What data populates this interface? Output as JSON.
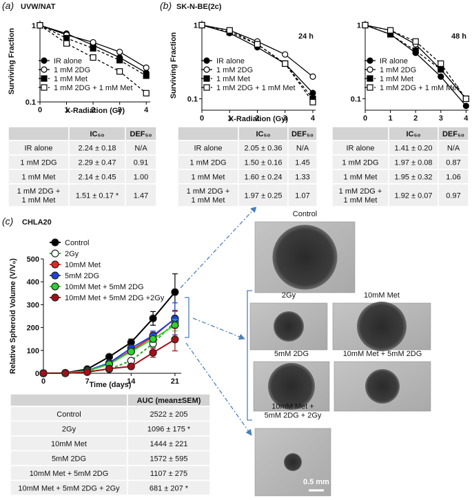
{
  "chart_data": [
    {
      "type": "line",
      "panel_label": "(a)",
      "title": "UVW/NAT",
      "xlabel": "X-Radiation (Gy)",
      "ylabel": "Surviving Fraction",
      "log_y": true,
      "xlim": [
        0,
        4.15
      ],
      "ylim": [
        0.1,
        1.15
      ],
      "xticks": [
        0,
        1,
        2,
        3,
        4
      ],
      "yticks": [
        0.1,
        1
      ],
      "legend": "lower left",
      "x": [
        0,
        1,
        2,
        3,
        4
      ],
      "series": [
        {
          "name": "IR alone",
          "color": "#000000",
          "marker": "circle",
          "marker_fill": true,
          "dash": false,
          "values": [
            1,
            0.78,
            0.55,
            0.38,
            0.24
          ]
        },
        {
          "name": "1 mM 2DG",
          "color": "#000000",
          "marker": "circle",
          "marker_fill": false,
          "dash": false,
          "values": [
            1,
            0.75,
            0.6,
            0.45,
            0.28
          ]
        },
        {
          "name": "1 mM Met",
          "color": "#000000",
          "marker": "square",
          "marker_fill": true,
          "dash": true,
          "values": [
            1,
            0.68,
            0.5,
            0.35,
            0.22
          ]
        },
        {
          "name": "1 mM 2DG + 1 mM Met",
          "color": "#000000",
          "marker": "square",
          "marker_fill": false,
          "dash": true,
          "values": [
            1,
            0.58,
            0.38,
            0.25,
            0.13
          ]
        }
      ]
    },
    {
      "type": "line",
      "panel_label": "(b)",
      "title": "SK-N-BE(2c)",
      "subtitle": "24 h",
      "xlabel": "X-Radiation (Gy)",
      "ylabel": "Surviving Fraction",
      "log_y": true,
      "xlim": [
        0,
        4.1
      ],
      "ylim": [
        0.07,
        1.15
      ],
      "xticks": [
        0,
        1,
        2,
        3,
        4
      ],
      "yticks": [
        0.1,
        1
      ],
      "legend": "lower left",
      "x": [
        0,
        1,
        2,
        3,
        4
      ],
      "series": [
        {
          "name": "IR alone",
          "color": "#000000",
          "marker": "circle",
          "marker_fill": true,
          "dash": false,
          "values": [
            1,
            0.78,
            0.5,
            0.3,
            0.12
          ]
        },
        {
          "name": "1 mM 2DG",
          "color": "#000000",
          "marker": "circle",
          "marker_fill": false,
          "dash": false,
          "values": [
            1,
            0.85,
            0.6,
            0.4,
            0.2
          ]
        },
        {
          "name": "1 mM Met",
          "color": "#000000",
          "marker": "square",
          "marker_fill": true,
          "dash": true,
          "values": [
            1,
            0.8,
            0.55,
            0.3,
            0.1
          ]
        },
        {
          "name": "1 mM 2DG + 1 mM Met",
          "color": "#000000",
          "marker": "square",
          "marker_fill": false,
          "dash": true,
          "values": [
            1,
            0.85,
            0.55,
            0.3,
            0.09
          ]
        }
      ]
    },
    {
      "type": "line",
      "subtitle": "48 h",
      "log_y": true,
      "xlim": [
        0,
        4.1
      ],
      "ylim": [
        0.07,
        1.15
      ],
      "xticks": [
        0,
        1,
        2,
        3,
        4
      ],
      "yticks": [
        0.1,
        1
      ],
      "legend": "lower left",
      "x": [
        0,
        1,
        2,
        3,
        4
      ],
      "series": [
        {
          "name": "IR alone",
          "color": "#000000",
          "marker": "circle",
          "marker_fill": true,
          "dash": false,
          "values": [
            1,
            0.75,
            0.42,
            0.2,
            0.08
          ]
        },
        {
          "name": "1 mM 2DG",
          "color": "#000000",
          "marker": "circle",
          "marker_fill": false,
          "dash": false,
          "values": [
            1,
            0.85,
            0.55,
            0.25,
            0.1
          ]
        },
        {
          "name": "1 mM Met",
          "color": "#000000",
          "marker": "square",
          "marker_fill": true,
          "dash": true,
          "values": [
            1,
            0.75,
            0.45,
            0.25,
            0.1
          ]
        },
        {
          "name": "1 mM 2DG + 1 mM Met",
          "color": "#000000",
          "marker": "square",
          "marker_fill": false,
          "dash": true,
          "values": [
            1,
            0.85,
            0.6,
            0.3,
            0.1
          ]
        }
      ]
    },
    {
      "type": "line",
      "panel_label": "(c)",
      "title": "CHLA20",
      "xlabel": "Time (days)",
      "ylabel": "Relative Spheroid Volume (V/V₀)",
      "log_y": false,
      "xlim": [
        0,
        22
      ],
      "ylim": [
        0,
        500
      ],
      "xticks": [
        0,
        7,
        14,
        21
      ],
      "yticks": [
        0,
        100,
        200,
        300,
        400,
        500
      ],
      "legend": "upper left",
      "x": [
        0,
        3.5,
        7,
        10.5,
        14,
        17.5,
        21
      ],
      "series": [
        {
          "name": "Control",
          "color": "#000000",
          "marker": "circle",
          "marker_fill": true,
          "dash": false,
          "values": [
            0,
            2,
            18,
            72,
            135,
            240,
            355
          ],
          "errors": [
            0,
            1,
            4,
            8,
            15,
            30,
            80
          ]
        },
        {
          "name": "2Gy",
          "color": "#2ca02c",
          "marker": "circle",
          "marker_fill": false,
          "dash": true,
          "values": [
            0,
            1,
            8,
            18,
            55,
            130,
            225
          ],
          "errors": [
            0,
            1,
            2,
            4,
            8,
            15,
            20
          ]
        },
        {
          "name": "10mM Met",
          "color": "#e8251f",
          "marker": "circle",
          "marker_fill": true,
          "dash": false,
          "values": [
            0,
            1,
            10,
            40,
            100,
            160,
            240
          ],
          "errors": [
            0,
            1,
            3,
            6,
            12,
            20,
            30
          ]
        },
        {
          "name": "5mM 2DG",
          "color": "#1f3fe8",
          "marker": "circle",
          "marker_fill": true,
          "dash": false,
          "values": [
            0,
            1,
            12,
            45,
            110,
            165,
            238
          ],
          "errors": [
            0,
            1,
            3,
            6,
            12,
            20,
            70
          ]
        },
        {
          "name": "10mM Met + 5mM 2DG",
          "color": "#2fd12f",
          "marker": "circle",
          "marker_fill": true,
          "dash": false,
          "values": [
            0,
            1,
            10,
            40,
            95,
            150,
            210
          ],
          "errors": [
            0,
            1,
            3,
            5,
            10,
            15,
            25
          ]
        },
        {
          "name": "10mM Met + 5mM 2DG +2Gy",
          "color": "#a50f15",
          "marker": "circle",
          "marker_fill": true,
          "dash": false,
          "values": [
            0,
            0,
            5,
            20,
            30,
            90,
            148
          ],
          "errors": [
            0,
            0,
            2,
            5,
            8,
            20,
            50
          ]
        }
      ]
    }
  ],
  "tables": [
    {
      "header": [
        "IC₅₀",
        "DEF₅₀"
      ],
      "rows": [
        [
          "IR alone",
          "2.24 ± 0.18",
          "N/A"
        ],
        [
          "1 mM 2DG",
          "2.29 ± 0.47",
          "0.91"
        ],
        [
          "1 mM Met",
          "2.14 ± 0.45",
          "1.00"
        ],
        [
          "1 mM 2DG +\n1 mM Met",
          "1.51 ± 0.17 *",
          "1.47"
        ]
      ]
    },
    {
      "header": [
        "IC₅₀",
        "DEF₅₀"
      ],
      "rows": [
        [
          "IR alone",
          "2.05 ± 0.36",
          "N/A"
        ],
        [
          "1 mM 2DG",
          "1.50 ± 0.16",
          "1.45"
        ],
        [
          "1 mM Met",
          "1.60 ± 0.24",
          "1.33"
        ],
        [
          "1 mM 2DG +\n1 mM Met",
          "1.97 ± 0.25",
          "1.07"
        ]
      ]
    },
    {
      "header": [
        "IC₅₀",
        "DEF₅₀"
      ],
      "rows": [
        [
          "IR alone",
          "1.41 ± 0.20",
          "N/A"
        ],
        [
          "1 mM 2DG",
          "1.97 ± 0.08",
          "0.87"
        ],
        [
          "1 mM Met",
          "1.95 ± 0.32",
          "1.06"
        ],
        [
          "1 mM 2DG +\n1 mM Met",
          "1.92 ± 0.07",
          "0.97"
        ]
      ]
    },
    {
      "header": [
        "AUC (mean±SEM)"
      ],
      "rows": [
        [
          "Control",
          "2522 ± 205"
        ],
        [
          "2Gy",
          "1096 ± 175 *"
        ],
        [
          "10mM Met",
          "1444 ± 221"
        ],
        [
          "5mM 2DG",
          "1572 ± 595"
        ],
        [
          "10mM Met + 5mM 2DG",
          "1107 ± 275"
        ],
        [
          "10mM Met + 5mM 2DG + 2Gy",
          "681 ± 207 *"
        ]
      ]
    }
  ],
  "image_labels": [
    "Control",
    "2Gy",
    "10mM Met",
    "5mM 2DG",
    "10mM Met + 5mM 2DG",
    "10mM Met +\n5mM 2DG + 2Gy"
  ],
  "scale_bar": "0.5 mm"
}
